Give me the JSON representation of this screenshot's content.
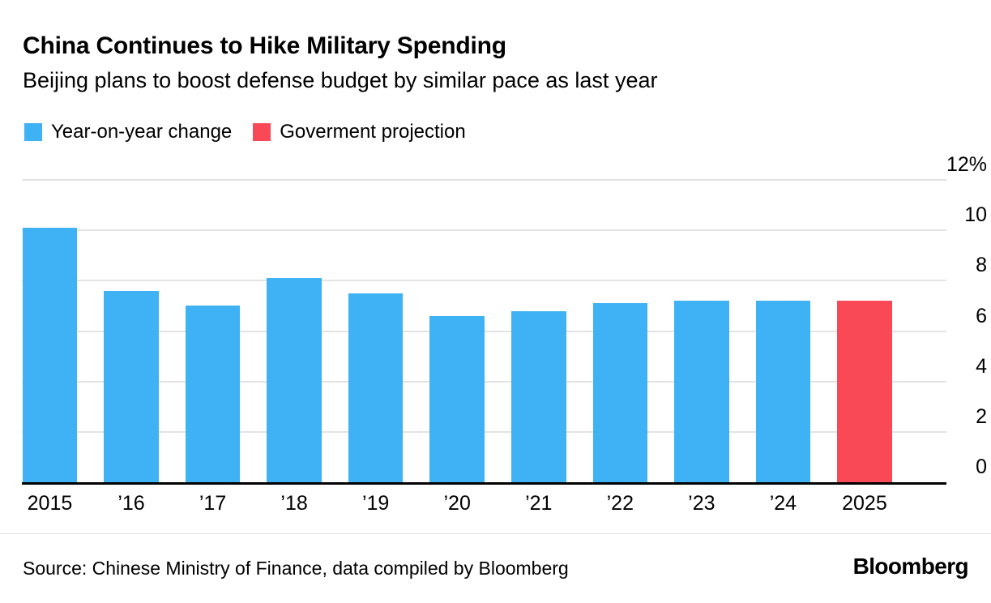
{
  "header": {
    "title": "China Continues to Hike Military Spending",
    "subtitle": "Beijing plans to boost defense budget by similar pace as last year"
  },
  "legend": {
    "items": [
      {
        "label": "Year-on-year change",
        "color": "#3EB2F4"
      },
      {
        "label": "Goverment projection",
        "color": "#F94957"
      }
    ]
  },
  "chart_data": {
    "type": "bar",
    "title": "China Continues to Hike Military Spending",
    "subtitle": "Beijing plans to boost defense budget by similar pace as last year",
    "unit": "%",
    "categories": [
      "2015",
      "’16",
      "’17",
      "’18",
      "’19",
      "’20",
      "’21",
      "’22",
      "’23",
      "’24",
      "2025"
    ],
    "values": [
      10.1,
      7.6,
      7.0,
      8.1,
      7.5,
      6.6,
      6.8,
      7.1,
      7.2,
      7.2,
      7.2
    ],
    "projection_index": 10,
    "colors": {
      "historical": "#3EB2F4",
      "projection": "#F94957",
      "grid": "#E3E3E3",
      "axis": "#000000"
    },
    "ylim": [
      0,
      12
    ],
    "yticks": [
      "12%",
      "10",
      "8",
      "6",
      "4",
      "2",
      "0"
    ],
    "ytick_values": [
      12,
      10,
      8,
      6,
      4,
      2,
      0
    ],
    "grid": true,
    "legend_position": "top-left",
    "series": [
      {
        "name": "Year-on-year change",
        "categories": [
          "2015",
          "’16",
          "’17",
          "’18",
          "’19",
          "’20",
          "’21",
          "’22",
          "’23",
          "’24"
        ],
        "values": [
          10.1,
          7.6,
          7.0,
          8.1,
          7.5,
          6.6,
          6.8,
          7.1,
          7.2,
          7.2
        ]
      },
      {
        "name": "Goverment projection",
        "categories": [
          "2025"
        ],
        "values": [
          7.2
        ]
      }
    ]
  },
  "footer": {
    "source": "Source: Chinese Ministry of Finance, data compiled by Bloomberg",
    "logo": "Bloomberg"
  }
}
